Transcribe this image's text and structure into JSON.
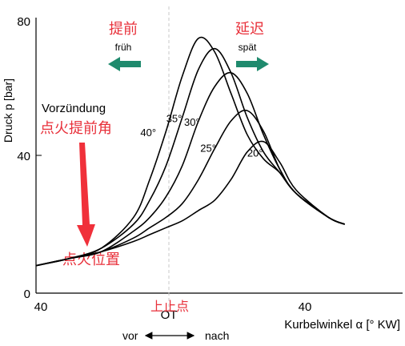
{
  "chart_data": {
    "type": "line",
    "title": "",
    "xlabel": "Kurbelwinkel α [° KW]",
    "ylabel": "Druck p [bar]",
    "xlim": [
      -40,
      60
    ],
    "ylim": [
      0,
      80
    ],
    "x_tick_labels": [
      "40",
      "OT",
      "40"
    ],
    "y_tick_labels": [
      "0",
      "40",
      "80"
    ],
    "tdc_line": "dashed",
    "series": [
      {
        "name": "40°",
        "x": [
          -40,
          -30,
          -20,
          -10,
          -5,
          0,
          5,
          10,
          15,
          20,
          25,
          30,
          35,
          40,
          50,
          55
        ],
        "y": [
          8,
          10,
          13,
          22,
          33,
          47,
          63,
          74,
          70,
          58,
          46,
          39,
          35,
          29,
          22,
          20
        ]
      },
      {
        "name": "35°",
        "x": [
          -40,
          -30,
          -20,
          -10,
          -5,
          0,
          5,
          10,
          15,
          20,
          25,
          30,
          35,
          40,
          50,
          55
        ],
        "y": [
          8,
          10,
          13,
          20,
          27,
          37,
          51,
          65,
          71,
          64,
          51,
          41,
          35,
          29,
          22,
          20
        ]
      },
      {
        "name": "30°",
        "x": [
          -40,
          -30,
          -20,
          -10,
          -5,
          0,
          5,
          10,
          15,
          20,
          25,
          30,
          35,
          40,
          50,
          55
        ],
        "y": [
          8,
          10,
          12,
          18,
          22,
          28,
          37,
          50,
          60,
          64,
          58,
          46,
          36,
          29,
          22,
          20
        ]
      },
      {
        "name": "25°",
        "x": [
          -40,
          -30,
          -20,
          -10,
          -5,
          0,
          5,
          10,
          15,
          20,
          25,
          30,
          35,
          40,
          50,
          55
        ],
        "y": [
          8,
          10,
          12,
          16,
          19,
          22,
          26,
          33,
          42,
          50,
          53,
          47,
          36,
          29,
          22,
          20
        ]
      },
      {
        "name": "20°",
        "x": [
          -40,
          -30,
          -20,
          -10,
          -5,
          0,
          5,
          10,
          15,
          20,
          25,
          30,
          35,
          40,
          50,
          55
        ],
        "y": [
          8,
          10,
          12,
          15,
          17,
          19,
          21,
          24,
          27,
          33,
          41,
          44,
          38,
          30,
          22,
          20
        ]
      }
    ],
    "annotations": {
      "early_cn": "提前",
      "early_de": "früh",
      "late_cn": "延迟",
      "late_de": "spät",
      "ignition_de": "Vorzündung",
      "ignition_cn": "点火提前角",
      "ignition_point_cn": "点火位置",
      "tdc_cn": "上止点",
      "vor": "vor",
      "nach": "nach"
    },
    "colors": {
      "curve": "#000000",
      "arrow_green": "#1f8a6d",
      "annotation_red": "#e8303a"
    }
  }
}
